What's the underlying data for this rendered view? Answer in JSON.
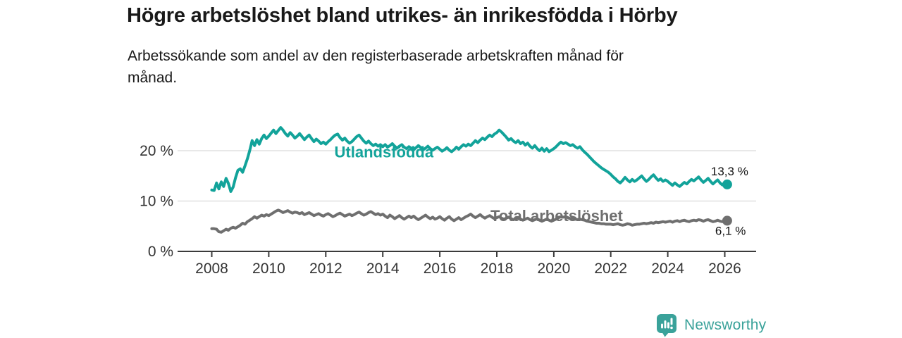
{
  "chart_data": {
    "type": "line",
    "title": "Högre arbetslöshet bland utrikes- än inrikesfödda i Hörby",
    "subtitle": "Arbetssökande som andel av den registerbaserade arbetskraften månad för månad.",
    "x_start_year": 2008,
    "points_per_year": 12,
    "xlim": [
      2006.8,
      2027.1
    ],
    "ylim": [
      0,
      27
    ],
    "grid": "horizontal",
    "legend_position": "inline-labels",
    "yticks": [
      {
        "value": 0,
        "label": "0 %"
      },
      {
        "value": 10,
        "label": "10 %"
      },
      {
        "value": 20,
        "label": "20 %"
      }
    ],
    "xticks": [
      2008,
      2010,
      2012,
      2014,
      2016,
      2018,
      2020,
      2022,
      2024,
      2026
    ],
    "series": [
      {
        "id": "utlandsfodda",
        "name": "Utlandsfödda",
        "color": "#12a39a",
        "label_anchor": {
          "x": 2014.04,
          "y": 18.7
        },
        "end_label": {
          "text": "13,3 %",
          "dx": -23,
          "dy": -13
        },
        "end_value": 13.3,
        "values": [
          12.2,
          12.1,
          13.6,
          12.4,
          13.8,
          12.9,
          14.5,
          13.5,
          11.9,
          12.8,
          14.6,
          16.1,
          16.4,
          15.7,
          17.0,
          18.4,
          20.1,
          22.0,
          21.0,
          22.2,
          21.3,
          22.4,
          23.1,
          22.4,
          22.9,
          23.5,
          24.1,
          23.4,
          24.0,
          24.6,
          24.1,
          23.4,
          22.9,
          23.6,
          23.1,
          22.5,
          22.9,
          23.4,
          22.8,
          22.2,
          22.7,
          23.1,
          22.4,
          21.8,
          22.3,
          21.9,
          21.4,
          21.7,
          21.3,
          21.8,
          22.2,
          22.7,
          23.1,
          23.3,
          22.6,
          22.1,
          22.5,
          21.9,
          21.5,
          21.8,
          22.3,
          22.8,
          23.1,
          22.5,
          21.9,
          21.5,
          21.9,
          21.4,
          21.0,
          21.3,
          20.9,
          21.2,
          20.8,
          21.2,
          20.7,
          21.0,
          21.4,
          20.9,
          20.5,
          20.9,
          21.2,
          20.7,
          20.4,
          20.8,
          20.5,
          20.2,
          20.6,
          21.0,
          20.6,
          20.2,
          20.5,
          20.9,
          20.4,
          20.1,
          20.4,
          20.7,
          20.3,
          19.9,
          20.2,
          20.6,
          20.1,
          19.8,
          20.2,
          20.7,
          20.3,
          20.8,
          21.2,
          20.9,
          21.3,
          21.0,
          21.5,
          22.0,
          21.6,
          22.1,
          22.5,
          22.2,
          22.7,
          23.1,
          22.8,
          23.3,
          23.6,
          24.1,
          23.7,
          23.2,
          22.7,
          22.1,
          22.4,
          21.9,
          21.6,
          22.0,
          21.4,
          21.7,
          21.1,
          21.5,
          20.9,
          20.5,
          21.0,
          20.4,
          20.0,
          20.5,
          19.9,
          20.4,
          19.8,
          20.1,
          20.4,
          20.8,
          21.3,
          21.7,
          21.4,
          21.6,
          21.3,
          21.0,
          21.2,
          20.8,
          20.5,
          20.8,
          20.2,
          19.7,
          19.3,
          18.8,
          18.3,
          17.8,
          17.4,
          17.0,
          16.6,
          16.3,
          16.0,
          15.7,
          15.3,
          14.8,
          14.4,
          13.9,
          13.6,
          14.1,
          14.7,
          14.2,
          13.8,
          14.3,
          13.9,
          14.2,
          14.6,
          15.0,
          14.4,
          13.9,
          14.3,
          14.8,
          15.2,
          14.6,
          14.1,
          14.4,
          13.9,
          14.2,
          13.9,
          13.5,
          13.1,
          13.6,
          13.2,
          12.9,
          13.3,
          13.7,
          13.4,
          13.9,
          14.3,
          14.0,
          14.4,
          14.8,
          14.2,
          13.7,
          14.1,
          14.5,
          13.9,
          13.4,
          13.8,
          14.2,
          13.6,
          13.2,
          13.5,
          13.3
        ]
      },
      {
        "id": "total",
        "name": "Total arbetslöshet",
        "color": "#6f6f6f",
        "label_anchor": {
          "x": 2020.1,
          "y": 6.0
        },
        "end_label": {
          "text": "6,1 %",
          "dx": -17,
          "dy": 20
        },
        "end_value": 6.1,
        "values": [
          4.5,
          4.5,
          4.4,
          3.9,
          3.8,
          4.1,
          4.4,
          4.2,
          4.6,
          4.8,
          4.6,
          4.9,
          5.2,
          5.6,
          5.4,
          5.9,
          6.2,
          6.5,
          6.9,
          6.6,
          6.9,
          7.2,
          7.0,
          7.3,
          7.1,
          7.4,
          7.7,
          8.0,
          8.2,
          8.0,
          7.7,
          7.9,
          8.1,
          7.8,
          7.6,
          7.8,
          7.7,
          7.5,
          7.7,
          7.3,
          7.5,
          7.7,
          7.4,
          7.1,
          7.3,
          7.5,
          7.2,
          7.0,
          7.3,
          7.5,
          7.2,
          6.9,
          7.1,
          7.4,
          7.6,
          7.3,
          7.0,
          7.2,
          7.4,
          7.1,
          7.3,
          7.6,
          7.8,
          7.5,
          7.2,
          7.4,
          7.7,
          7.9,
          7.6,
          7.3,
          7.5,
          7.2,
          7.4,
          7.0,
          6.7,
          7.2,
          6.9,
          6.5,
          6.8,
          7.1,
          6.7,
          6.4,
          6.7,
          7.0,
          6.7,
          7.0,
          6.6,
          6.3,
          6.6,
          6.9,
          7.2,
          6.8,
          6.5,
          6.8,
          6.4,
          6.6,
          6.9,
          6.5,
          6.2,
          6.6,
          6.9,
          6.4,
          6.1,
          6.4,
          6.7,
          6.3,
          6.6,
          6.9,
          7.1,
          7.4,
          7.0,
          6.7,
          7.0,
          7.3,
          6.9,
          6.6,
          6.9,
          7.1,
          6.8,
          6.5,
          6.7,
          6.9,
          6.6,
          6.4,
          6.6,
          6.8,
          6.5,
          6.3,
          6.5,
          6.7,
          6.4,
          6.2,
          6.4,
          6.6,
          6.3,
          6.1,
          6.3,
          6.5,
          6.2,
          6.0,
          6.2,
          6.4,
          6.2,
          6.0,
          6.2,
          6.4,
          6.7,
          6.9,
          6.8,
          6.9,
          6.7,
          6.5,
          6.6,
          6.4,
          6.3,
          6.4,
          6.3,
          6.2,
          6.0,
          5.9,
          5.8,
          5.7,
          5.6,
          5.6,
          5.5,
          5.5,
          5.4,
          5.4,
          5.4,
          5.3,
          5.4,
          5.5,
          5.3,
          5.2,
          5.3,
          5.5,
          5.4,
          5.2,
          5.3,
          5.4,
          5.4,
          5.5,
          5.6,
          5.5,
          5.6,
          5.7,
          5.6,
          5.8,
          5.7,
          5.8,
          5.9,
          5.8,
          5.9,
          6.0,
          5.8,
          6.0,
          6.1,
          5.9,
          6.1,
          6.2,
          6.0,
          5.9,
          6.1,
          6.2,
          6.1,
          6.3,
          6.2,
          6.0,
          6.2,
          6.3,
          6.1,
          5.9,
          6.0,
          6.2,
          6.0,
          5.9,
          6.0,
          6.1
        ]
      }
    ]
  },
  "branding": {
    "name": "Newsworthy",
    "color": "#3aa29a",
    "icon": "bar-chart-speech-bubble"
  },
  "colors": {
    "axis": "#3b3b3b",
    "grid": "#d9d9d9",
    "title_text": "#191919",
    "tick_text": "#333333"
  }
}
